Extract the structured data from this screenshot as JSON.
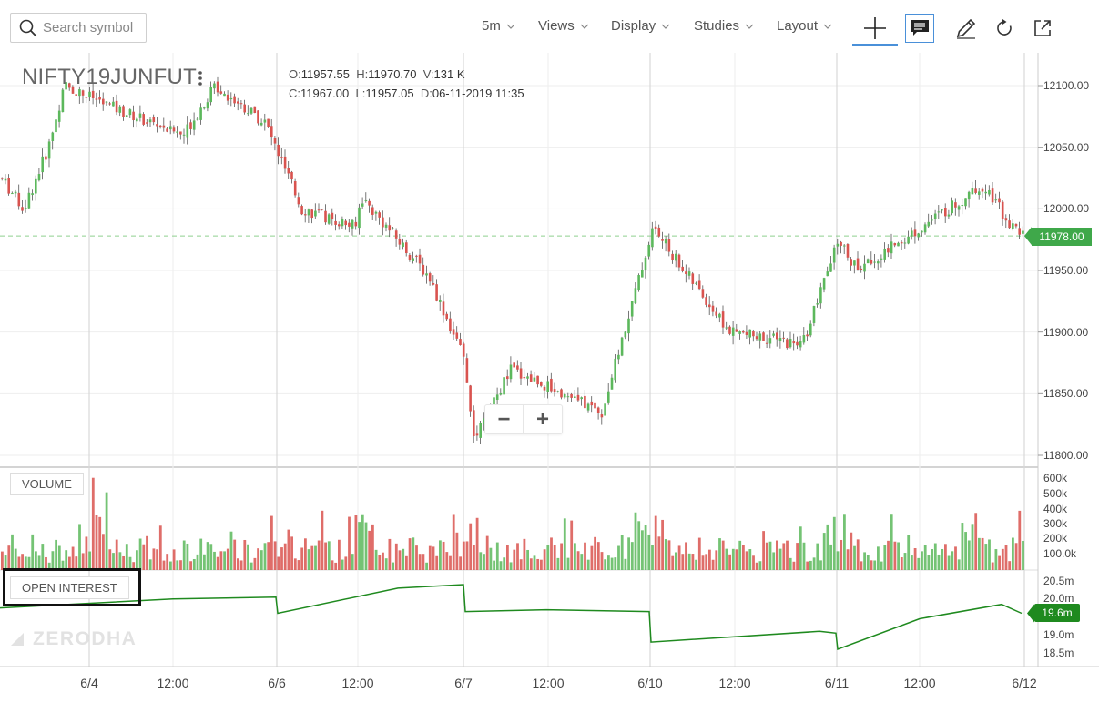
{
  "toolbar": {
    "search_placeholder": "Search symbol",
    "interval": "5m",
    "views": "Views",
    "display": "Display",
    "studies": "Studies",
    "layout": "Layout",
    "icons": [
      "search-icon",
      "chevron-down-icon",
      "crosshair-icon",
      "chat-icon",
      "pencil-icon",
      "refresh-icon",
      "external-link-icon"
    ]
  },
  "chart": {
    "symbol": "NIFTY19JUNFUT",
    "ohlc": {
      "o_label": "O:",
      "o": "11957.55",
      "h_label": "H:",
      "h": "11970.70",
      "v_label": "V:",
      "v": "131 K",
      "c_label": "C:",
      "c": "11967.00",
      "l_label": "L:",
      "l": "11957.05",
      "d_label": "D:",
      "d": "06-11-2019 11:35"
    },
    "last_price": "11978.00",
    "zoom_out": "−",
    "zoom_in": "+",
    "price_axis": [
      "12100.00",
      "12050.00",
      "12000.00",
      "11950.00",
      "11900.00",
      "11850.00",
      "11800.00"
    ],
    "volume_label": "VOLUME",
    "volume_axis": [
      "600k",
      "500k",
      "400k",
      "300k",
      "200k",
      "100.0k"
    ],
    "oi_label": "OPEN INTEREST",
    "oi_axis": [
      "20.5m",
      "20.0m",
      "19.0m",
      "18.5m"
    ],
    "oi_last": "19.6m",
    "time_axis": [
      "6/4",
      "12:00",
      "6/6",
      "12:00",
      "6/7",
      "12:00",
      "6/10",
      "12:00",
      "6/11",
      "12:00",
      "6/12"
    ],
    "watermark": "ZERODHA",
    "colors": {
      "up": "#5cb85c",
      "down": "#d9534f",
      "oi_line": "#1f8a1f",
      "last_price": "#3fa84a",
      "active_tab": "#4a90d9"
    }
  },
  "chart_data": {
    "type": "candlestick",
    "symbol": "NIFTY19JUNFUT",
    "interval": "5m",
    "ylim": [
      11795,
      12115
    ],
    "last_price": 11978.0,
    "price_path": [
      [
        "6/4 start",
        12025
      ],
      [
        "6/4 09:45",
        12000
      ],
      [
        "6/4 10:30",
        12050
      ],
      [
        "6/4 11:00",
        12100
      ],
      [
        "6/4 13:00",
        12080
      ],
      [
        "6/4 15:00",
        12060
      ],
      [
        "6/5 10:00",
        12100
      ],
      [
        "6/5 14:00",
        12070
      ],
      [
        "6/6 10:00",
        12000
      ],
      [
        "6/6 12:00",
        11985
      ],
      [
        "6/6 13:00",
        12010
      ],
      [
        "6/6 14:30",
        11945
      ],
      [
        "6/7 09:15",
        11875
      ],
      [
        "6/7 11:00",
        11810
      ],
      [
        "6/7 13:00",
        11870
      ],
      [
        "6/7 15:00",
        11835
      ],
      [
        "6/10 09:15",
        11985
      ],
      [
        "6/10 11:00",
        11940
      ],
      [
        "6/10 13:00",
        11900
      ],
      [
        "6/10 15:00",
        11890
      ],
      [
        "6/11 09:15",
        11975
      ],
      [
        "6/11 11:00",
        11950
      ],
      [
        "6/11 13:00",
        11985
      ],
      [
        "6/11 15:00",
        12020
      ],
      [
        "6/12 09:30",
        11985
      ],
      [
        "6/12 09:45",
        11978
      ]
    ],
    "volume_axis_k": [
      100,
      200,
      300,
      400,
      500,
      600
    ],
    "open_interest_m": [
      [
        "6/4 start",
        19.75
      ],
      [
        "6/4 12:00",
        20.0
      ],
      [
        "6/6 09:15",
        20.05
      ],
      [
        "6/6 09:20",
        19.6
      ],
      [
        "6/6 15:00",
        20.3
      ],
      [
        "6/7 09:15",
        20.4
      ],
      [
        "6/7 09:20",
        19.65
      ],
      [
        "6/7 15:00",
        19.7
      ],
      [
        "6/10 09:15",
        19.65
      ],
      [
        "6/10 09:20",
        18.8
      ],
      [
        "6/10 15:00",
        19.1
      ],
      [
        "6/11 09:15",
        19.05
      ],
      [
        "6/11 09:20",
        18.6
      ],
      [
        "6/11 15:00",
        19.45
      ],
      [
        "6/12 09:15",
        19.85
      ],
      [
        "6/12 09:45",
        19.6
      ]
    ],
    "oi_ylim": [
      18.4,
      20.6
    ],
    "x_ticks": [
      "6/4",
      "12:00",
      "6/6",
      "12:00",
      "6/7",
      "12:00",
      "6/10",
      "12:00",
      "6/11",
      "12:00",
      "6/12"
    ],
    "grid": true
  }
}
